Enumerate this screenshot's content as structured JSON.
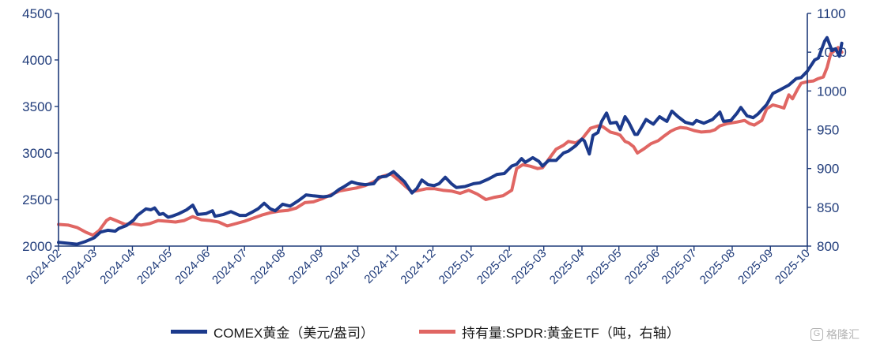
{
  "chart_data": {
    "type": "line",
    "left_axis": {
      "ticks": [
        2000,
        2500,
        3000,
        3500,
        4000,
        4500
      ],
      "ylim": [
        2000,
        4500
      ]
    },
    "right_axis": {
      "ticks": [
        800,
        850,
        900,
        950,
        1000,
        1050,
        1100
      ],
      "ylim": [
        800,
        1100
      ]
    },
    "x_ticks": [
      "2024-02",
      "2024-03",
      "2024-04",
      "2024-05",
      "2024-06",
      "2024-07",
      "2024-08",
      "2024-09",
      "2024-10",
      "2024-11",
      "2024-12",
      "2025-01",
      "2025-02",
      "2025-03",
      "2025-04",
      "2025-05",
      "2025-06",
      "2025-07",
      "2025-08",
      "2025-09",
      "2025-10"
    ],
    "series": [
      {
        "name": "COMEX黄金（美元/盎司）",
        "axis": "left",
        "color": "#1c3a8c",
        "points": [
          [
            "2024-02-01",
            2040
          ],
          [
            "2024-02-09",
            2030
          ],
          [
            "2024-02-16",
            2020
          ],
          [
            "2024-02-23",
            2050
          ],
          [
            "2024-03-01",
            2090
          ],
          [
            "2024-03-06",
            2150
          ],
          [
            "2024-03-12",
            2170
          ],
          [
            "2024-03-18",
            2160
          ],
          [
            "2024-03-21",
            2190
          ],
          [
            "2024-03-27",
            2220
          ],
          [
            "2024-04-02",
            2280
          ],
          [
            "2024-04-05",
            2330
          ],
          [
            "2024-04-09",
            2370
          ],
          [
            "2024-04-12",
            2400
          ],
          [
            "2024-04-16",
            2390
          ],
          [
            "2024-04-19",
            2410
          ],
          [
            "2024-04-23",
            2340
          ],
          [
            "2024-04-26",
            2350
          ],
          [
            "2024-04-30",
            2310
          ],
          [
            "2024-05-03",
            2320
          ],
          [
            "2024-05-09",
            2350
          ],
          [
            "2024-05-15",
            2390
          ],
          [
            "2024-05-20",
            2440
          ],
          [
            "2024-05-24",
            2340
          ],
          [
            "2024-05-31",
            2350
          ],
          [
            "2024-06-05",
            2380
          ],
          [
            "2024-06-07",
            2320
          ],
          [
            "2024-06-14",
            2340
          ],
          [
            "2024-06-20",
            2370
          ],
          [
            "2024-06-27",
            2330
          ],
          [
            "2024-07-02",
            2330
          ],
          [
            "2024-07-08",
            2370
          ],
          [
            "2024-07-12",
            2400
          ],
          [
            "2024-07-17",
            2460
          ],
          [
            "2024-07-22",
            2400
          ],
          [
            "2024-07-26",
            2380
          ],
          [
            "2024-08-01",
            2450
          ],
          [
            "2024-08-07",
            2430
          ],
          [
            "2024-08-14",
            2490
          ],
          [
            "2024-08-20",
            2550
          ],
          [
            "2024-08-26",
            2540
          ],
          [
            "2024-09-03",
            2530
          ],
          [
            "2024-09-09",
            2540
          ],
          [
            "2024-09-16",
            2610
          ],
          [
            "2024-09-20",
            2640
          ],
          [
            "2024-09-26",
            2690
          ],
          [
            "2024-10-01",
            2670
          ],
          [
            "2024-10-07",
            2660
          ],
          [
            "2024-10-14",
            2670
          ],
          [
            "2024-10-18",
            2740
          ],
          [
            "2024-10-24",
            2750
          ],
          [
            "2024-10-30",
            2800
          ],
          [
            "2024-11-04",
            2740
          ],
          [
            "2024-11-08",
            2690
          ],
          [
            "2024-11-14",
            2570
          ],
          [
            "2024-11-18",
            2620
          ],
          [
            "2024-11-22",
            2710
          ],
          [
            "2024-11-27",
            2660
          ],
          [
            "2024-12-02",
            2650
          ],
          [
            "2024-12-06",
            2670
          ],
          [
            "2024-12-11",
            2740
          ],
          [
            "2024-12-16",
            2670
          ],
          [
            "2024-12-20",
            2630
          ],
          [
            "2024-12-27",
            2640
          ],
          [
            "2025-01-03",
            2670
          ],
          [
            "2025-01-08",
            2680
          ],
          [
            "2025-01-15",
            2720
          ],
          [
            "2025-01-22",
            2770
          ],
          [
            "2025-01-28",
            2780
          ],
          [
            "2025-02-03",
            2860
          ],
          [
            "2025-02-07",
            2880
          ],
          [
            "2025-02-11",
            2940
          ],
          [
            "2025-02-14",
            2900
          ],
          [
            "2025-02-20",
            2950
          ],
          [
            "2025-02-25",
            2910
          ],
          [
            "2025-02-28",
            2860
          ],
          [
            "2025-03-05",
            2920
          ],
          [
            "2025-03-11",
            2920
          ],
          [
            "2025-03-17",
            3000
          ],
          [
            "2025-03-21",
            3020
          ],
          [
            "2025-03-27",
            3080
          ],
          [
            "2025-04-01",
            3150
          ],
          [
            "2025-04-03",
            3130
          ],
          [
            "2025-04-07",
            2990
          ],
          [
            "2025-04-10",
            3190
          ],
          [
            "2025-04-14",
            3220
          ],
          [
            "2025-04-17",
            3340
          ],
          [
            "2025-04-21",
            3430
          ],
          [
            "2025-04-24",
            3320
          ],
          [
            "2025-04-29",
            3330
          ],
          [
            "2025-05-02",
            3250
          ],
          [
            "2025-05-06",
            3390
          ],
          [
            "2025-05-09",
            3330
          ],
          [
            "2025-05-14",
            3200
          ],
          [
            "2025-05-16",
            3200
          ],
          [
            "2025-05-20",
            3290
          ],
          [
            "2025-05-23",
            3360
          ],
          [
            "2025-05-29",
            3310
          ],
          [
            "2025-06-03",
            3390
          ],
          [
            "2025-06-09",
            3340
          ],
          [
            "2025-06-13",
            3450
          ],
          [
            "2025-06-18",
            3390
          ],
          [
            "2025-06-24",
            3330
          ],
          [
            "2025-06-30",
            3310
          ],
          [
            "2025-07-03",
            3350
          ],
          [
            "2025-07-09",
            3320
          ],
          [
            "2025-07-16",
            3360
          ],
          [
            "2025-07-22",
            3440
          ],
          [
            "2025-07-25",
            3340
          ],
          [
            "2025-07-31",
            3350
          ],
          [
            "2025-08-05",
            3430
          ],
          [
            "2025-08-08",
            3490
          ],
          [
            "2025-08-13",
            3400
          ],
          [
            "2025-08-18",
            3380
          ],
          [
            "2025-08-22",
            3420
          ],
          [
            "2025-08-29",
            3520
          ],
          [
            "2025-09-03",
            3640
          ],
          [
            "2025-09-09",
            3680
          ],
          [
            "2025-09-16",
            3730
          ],
          [
            "2025-09-22",
            3800
          ],
          [
            "2025-09-26",
            3810
          ],
          [
            "2025-10-01",
            3880
          ],
          [
            "2025-10-07",
            4000
          ],
          [
            "2025-10-10",
            4020
          ],
          [
            "2025-10-15",
            4200
          ],
          [
            "2025-10-17",
            4240
          ],
          [
            "2025-10-21",
            4100
          ],
          [
            "2025-10-24",
            4120
          ],
          [
            "2025-10-27",
            4040
          ],
          [
            "2025-10-29",
            4180
          ]
        ]
      },
      {
        "name": "持有量:SPDR:黄金ETF（吨，右轴）",
        "axis": "right",
        "color": "#e06663",
        "points": [
          [
            "2024-02-01",
            828
          ],
          [
            "2024-02-09",
            827
          ],
          [
            "2024-02-16",
            824
          ],
          [
            "2024-02-23",
            818
          ],
          [
            "2024-02-29",
            814
          ],
          [
            "2024-03-05",
            820
          ],
          [
            "2024-03-11",
            833
          ],
          [
            "2024-03-14",
            836
          ],
          [
            "2024-03-20",
            832
          ],
          [
            "2024-03-26",
            828
          ],
          [
            "2024-04-01",
            829
          ],
          [
            "2024-04-08",
            827
          ],
          [
            "2024-04-15",
            829
          ],
          [
            "2024-04-22",
            833
          ],
          [
            "2024-04-29",
            832
          ],
          [
            "2024-05-06",
            831
          ],
          [
            "2024-05-13",
            833
          ],
          [
            "2024-05-20",
            838
          ],
          [
            "2024-05-27",
            834
          ],
          [
            "2024-06-03",
            833
          ],
          [
            "2024-06-10",
            831
          ],
          [
            "2024-06-17",
            826
          ],
          [
            "2024-06-24",
            829
          ],
          [
            "2024-07-01",
            832
          ],
          [
            "2024-07-08",
            836
          ],
          [
            "2024-07-15",
            840
          ],
          [
            "2024-07-22",
            843
          ],
          [
            "2024-07-29",
            845
          ],
          [
            "2024-08-05",
            846
          ],
          [
            "2024-08-12",
            849
          ],
          [
            "2024-08-19",
            856
          ],
          [
            "2024-08-26",
            857
          ],
          [
            "2024-09-02",
            861
          ],
          [
            "2024-09-09",
            866
          ],
          [
            "2024-09-16",
            871
          ],
          [
            "2024-09-23",
            873
          ],
          [
            "2024-09-30",
            875
          ],
          [
            "2024-10-07",
            878
          ],
          [
            "2024-10-14",
            883
          ],
          [
            "2024-10-21",
            890
          ],
          [
            "2024-10-28",
            893
          ],
          [
            "2024-11-04",
            884
          ],
          [
            "2024-11-08",
            878
          ],
          [
            "2024-11-14",
            870
          ],
          [
            "2024-11-20",
            872
          ],
          [
            "2024-11-26",
            874
          ],
          [
            "2024-12-02",
            874
          ],
          [
            "2024-12-09",
            872
          ],
          [
            "2024-12-16",
            871
          ],
          [
            "2024-12-23",
            868
          ],
          [
            "2024-12-30",
            872
          ],
          [
            "2025-01-06",
            867
          ],
          [
            "2025-01-13",
            860
          ],
          [
            "2025-01-20",
            863
          ],
          [
            "2025-01-27",
            865
          ],
          [
            "2025-02-03",
            872
          ],
          [
            "2025-02-07",
            900
          ],
          [
            "2025-02-12",
            905
          ],
          [
            "2025-02-18",
            903
          ],
          [
            "2025-02-24",
            900
          ],
          [
            "2025-02-28",
            901
          ],
          [
            "2025-03-05",
            912
          ],
          [
            "2025-03-11",
            925
          ],
          [
            "2025-03-17",
            930
          ],
          [
            "2025-03-21",
            935
          ],
          [
            "2025-03-27",
            933
          ],
          [
            "2025-04-01",
            938
          ],
          [
            "2025-04-04",
            944
          ],
          [
            "2025-04-08",
            952
          ],
          [
            "2025-04-14",
            955
          ],
          [
            "2025-04-18",
            954
          ],
          [
            "2025-04-24",
            947
          ],
          [
            "2025-04-29",
            945
          ],
          [
            "2025-05-02",
            943
          ],
          [
            "2025-05-06",
            935
          ],
          [
            "2025-05-09",
            933
          ],
          [
            "2025-05-13",
            928
          ],
          [
            "2025-05-16",
            920
          ],
          [
            "2025-05-21",
            925
          ],
          [
            "2025-05-27",
            932
          ],
          [
            "2025-06-02",
            936
          ],
          [
            "2025-06-06",
            941
          ],
          [
            "2025-06-12",
            948
          ],
          [
            "2025-06-16",
            951
          ],
          [
            "2025-06-20",
            953
          ],
          [
            "2025-06-25",
            952
          ],
          [
            "2025-07-01",
            949
          ],
          [
            "2025-07-07",
            947
          ],
          [
            "2025-07-14",
            948
          ],
          [
            "2025-07-18",
            950
          ],
          [
            "2025-07-22",
            955
          ],
          [
            "2025-07-28",
            958
          ],
          [
            "2025-08-01",
            959
          ],
          [
            "2025-08-05",
            960
          ],
          [
            "2025-08-11",
            962
          ],
          [
            "2025-08-15",
            958
          ],
          [
            "2025-08-19",
            956
          ],
          [
            "2025-08-25",
            962
          ],
          [
            "2025-08-29",
            977
          ],
          [
            "2025-09-03",
            982
          ],
          [
            "2025-09-08",
            980
          ],
          [
            "2025-09-12",
            978
          ],
          [
            "2025-09-16",
            995
          ],
          [
            "2025-09-19",
            990
          ],
          [
            "2025-09-23",
            1002
          ],
          [
            "2025-09-26",
            1010
          ],
          [
            "2025-10-01",
            1012
          ],
          [
            "2025-10-06",
            1013
          ],
          [
            "2025-10-10",
            1016
          ],
          [
            "2025-10-14",
            1018
          ],
          [
            "2025-10-17",
            1030
          ],
          [
            "2025-10-20",
            1048
          ],
          [
            "2025-10-23",
            1052
          ],
          [
            "2025-10-26",
            1056
          ],
          [
            "2025-10-29",
            1050
          ]
        ]
      }
    ],
    "legend_position": "bottom",
    "grid": false
  },
  "watermark": {
    "text": "格隆汇",
    "icon": "g-logo-icon"
  }
}
